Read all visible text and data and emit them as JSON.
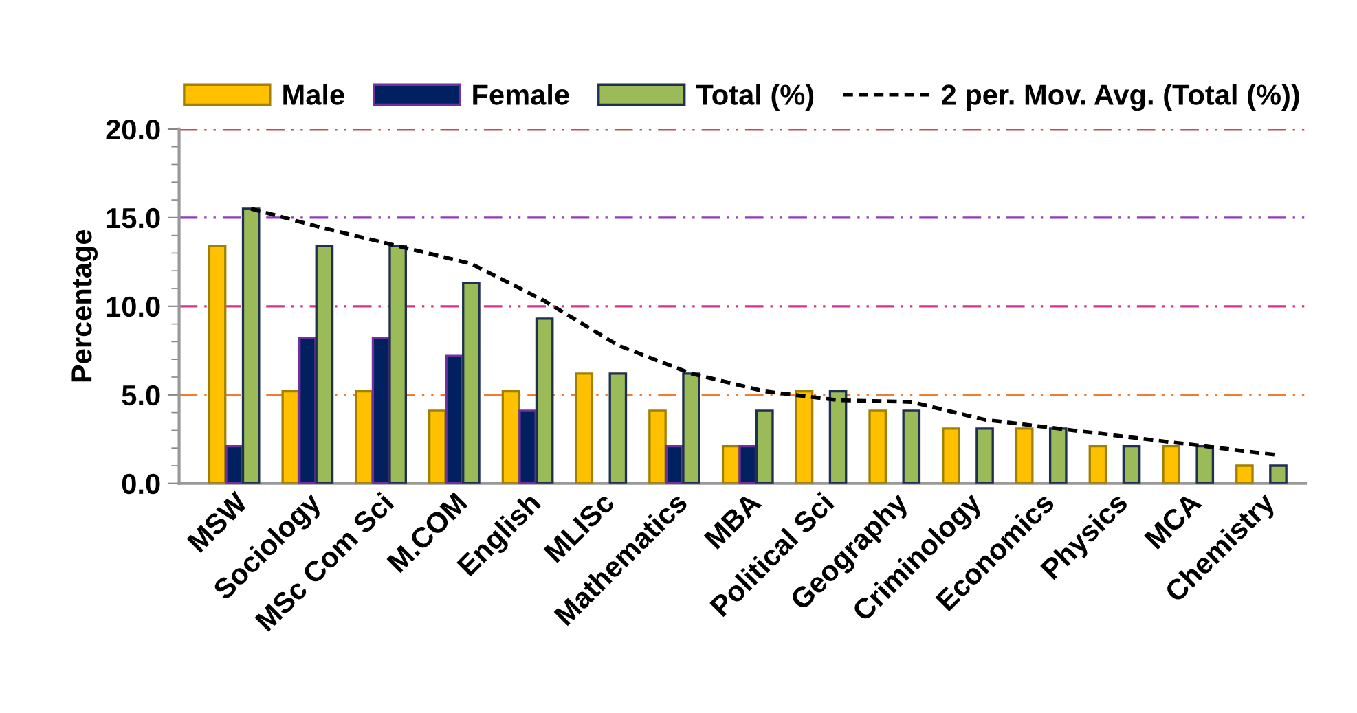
{
  "chart_data": {
    "type": "bar",
    "ylabel": "Percentage",
    "categories": [
      "MSW",
      "Sociology",
      "MSc Com Sci",
      "M.COM",
      "English",
      "MLISc",
      "Mathematics",
      "MBA",
      "Political Sci",
      "Geography",
      "Criminology",
      "Economics",
      "Physics",
      "MCA",
      "Chemistry"
    ],
    "series": [
      {
        "name": "Male",
        "color": "#ffc000",
        "values": [
          13.4,
          5.2,
          5.2,
          4.1,
          5.2,
          6.2,
          4.1,
          2.1,
          5.2,
          4.1,
          3.1,
          3.1,
          2.1,
          2.1,
          1.0
        ]
      },
      {
        "name": "Female",
        "color": "#002060",
        "values": [
          2.1,
          8.2,
          8.2,
          7.2,
          4.1,
          null,
          2.1,
          2.1,
          null,
          null,
          null,
          null,
          null,
          null,
          null
        ]
      },
      {
        "name": "Total (%)",
        "color": "#9bbb59",
        "values": [
          15.5,
          13.4,
          13.4,
          11.3,
          9.3,
          6.2,
          6.2,
          4.1,
          5.2,
          4.1,
          3.1,
          3.1,
          2.1,
          2.1,
          1.0
        ]
      },
      {
        "name": "2 per. Mov. Avg. (Total (%))",
        "type": "line",
        "color": "#000000",
        "line_style": "dashed",
        "values": [
          15.5,
          14.4,
          13.4,
          12.4,
          10.3,
          7.8,
          6.2,
          5.2,
          4.7,
          4.6,
          3.6,
          3.1,
          2.6,
          2.1,
          1.6
        ]
      }
    ],
    "ylim": [
      0,
      20
    ],
    "yticks": [
      {
        "value": 0,
        "label": "0.0"
      },
      {
        "value": 5,
        "label": "5.0"
      },
      {
        "value": 10,
        "label": "10.0"
      },
      {
        "value": 15,
        "label": "15.0"
      },
      {
        "value": 20,
        "label": "20.0"
      }
    ],
    "ref_lines": [
      {
        "axis": "y",
        "value": 5,
        "color": "#ed7d31"
      },
      {
        "axis": "y",
        "value": 10,
        "color": "#d6338f"
      },
      {
        "axis": "y",
        "value": 15,
        "color": "#8e3cc0"
      },
      {
        "axis": "y",
        "value": 20,
        "color": "#c0504d"
      }
    ],
    "legend": "top"
  }
}
